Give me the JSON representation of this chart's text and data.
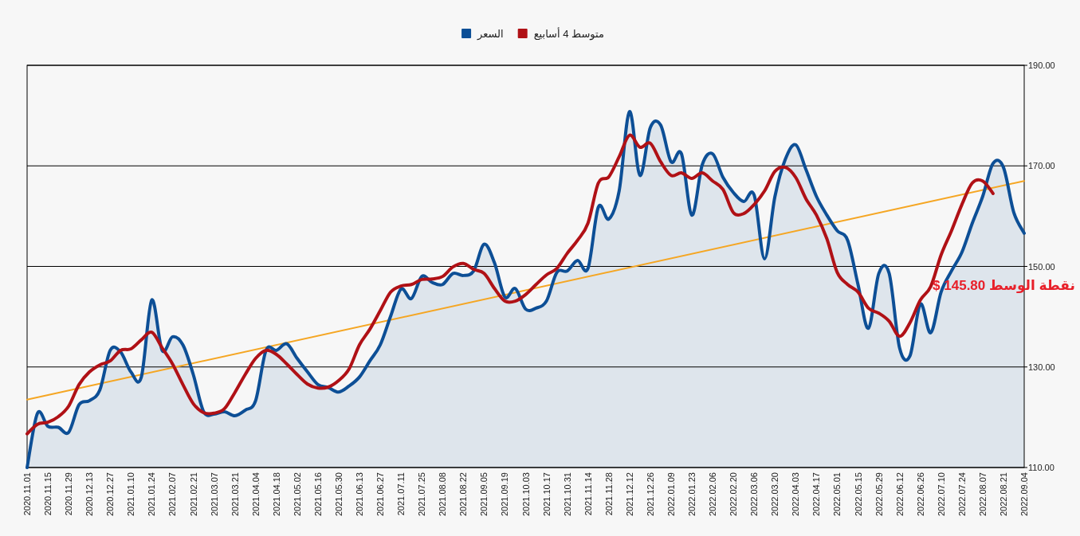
{
  "chart_data": {
    "type": "line",
    "x": [
      "2020-11-01",
      "2020-11-08",
      "2020-11-15",
      "2020-11-22",
      "2020-11-29",
      "2020-12-06",
      "2020-12-13",
      "2020-12-20",
      "2020-12-27",
      "2021-01-03",
      "2021-01-10",
      "2021-01-17",
      "2021-01-24",
      "2021-01-31",
      "2021-02-07",
      "2021-02-14",
      "2021-02-21",
      "2021-02-28",
      "2021-03-07",
      "2021-03-14",
      "2021-03-21",
      "2021-03-28",
      "2021-04-04",
      "2021-04-11",
      "2021-04-18",
      "2021-04-25",
      "2021-05-02",
      "2021-05-09",
      "2021-05-16",
      "2021-05-23",
      "2021-05-30",
      "2021-06-06",
      "2021-06-13",
      "2021-06-20",
      "2021-06-27",
      "2021-07-04",
      "2021-07-11",
      "2021-07-18",
      "2021-07-25",
      "2021-08-01",
      "2021-08-08",
      "2021-08-15",
      "2021-08-22",
      "2021-08-29",
      "2021-09-05",
      "2021-09-12",
      "2021-09-19",
      "2021-09-26",
      "2021-10-03",
      "2021-10-10",
      "2021-10-17",
      "2021-10-24",
      "2021-10-31",
      "2021-11-07",
      "2021-11-14",
      "2021-11-21",
      "2021-11-28",
      "2021-12-05",
      "2021-12-12",
      "2021-12-19",
      "2021-12-26",
      "2022-01-02",
      "2022-01-09",
      "2022-01-16",
      "2022-01-23",
      "2022-01-30",
      "2022-02-06",
      "2022-02-13",
      "2022-02-20",
      "2022-02-27",
      "2022-03-06",
      "2022-03-13",
      "2022-03-20",
      "2022-03-27",
      "2022-04-03",
      "2022-04-10",
      "2022-04-17",
      "2022-04-24",
      "2022-05-01",
      "2022-05-08",
      "2022-05-15",
      "2022-05-22",
      "2022-05-29",
      "2022-06-05",
      "2022-06-12",
      "2022-06-19",
      "2022-06-26",
      "2022-07-03",
      "2022-07-10",
      "2022-07-17",
      "2022-07-24",
      "2022-07-31",
      "2022-08-07",
      "2022-08-14",
      "2022-08-21",
      "2022-08-28",
      "2022-09-04"
    ],
    "series": [
      {
        "name": "السعر",
        "type": "area",
        "color": "#0d4f96",
        "values": [
          110,
          120.8,
          118.2,
          118,
          117,
          122.5,
          123.3,
          125.4,
          133.3,
          133,
          129,
          128,
          143.3,
          133.3,
          136,
          134.4,
          128.5,
          121.1,
          120.6,
          121.1,
          120.3,
          121.4,
          123.3,
          133.3,
          133.3,
          134.6,
          131.7,
          129,
          126.5,
          125.9,
          125,
          126.2,
          128,
          131.2,
          134.4,
          140.1,
          145.5,
          143.6,
          148,
          146.8,
          146.4,
          148.6,
          148.2,
          149.1,
          154.4,
          150.7,
          143.9,
          145.6,
          141.5,
          141.7,
          143.1,
          148.8,
          149.1,
          151.2,
          149.6,
          161.8,
          159.4,
          165,
          180.8,
          168.1,
          177.6,
          178.1,
          170.8,
          172.4,
          160.2,
          170.2,
          172.4,
          167.7,
          164.7,
          162.9,
          164.2,
          151.5,
          163.9,
          171.3,
          174.2,
          169.2,
          163.9,
          160.2,
          157.1,
          155.2,
          146.4,
          137.7,
          148.6,
          148.6,
          133.8,
          132.2,
          142.5,
          136.8,
          144.9,
          149.1,
          152.8,
          158.6,
          163.9,
          170.5,
          169.7,
          160.7,
          156.6
        ]
      },
      {
        "name": "متوسط 4 أسابيع",
        "type": "line",
        "color": "#b01116",
        "values": [
          116.7,
          118.6,
          119,
          120.1,
          122.2,
          126.5,
          129,
          130.4,
          131.2,
          133.3,
          133.6,
          135.4,
          136.9,
          133.8,
          130.6,
          126.5,
          122.7,
          120.9,
          120.8,
          121.7,
          124.9,
          128.5,
          131.7,
          133.3,
          132.5,
          130.6,
          128.5,
          126.6,
          125.8,
          126,
          127.3,
          129.6,
          134.4,
          137.5,
          141.2,
          144.9,
          146.1,
          146.4,
          147.4,
          147.5,
          148,
          149.9,
          150.6,
          149.4,
          148.6,
          145.6,
          143.1,
          143.1,
          144.4,
          146.4,
          148.3,
          149.6,
          152.6,
          155.2,
          158.6,
          166.6,
          167.8,
          171.8,
          176.1,
          173.7,
          174.5,
          170.8,
          168.1,
          168.6,
          167.5,
          168.6,
          167,
          165.3,
          160.7,
          160.5,
          162.3,
          165,
          168.9,
          169.7,
          167.7,
          163.4,
          160.2,
          155.5,
          148.8,
          146.4,
          144.9,
          141.7,
          140.7,
          139.1,
          136.1,
          138.8,
          143.3,
          146,
          152.3,
          157.1,
          162.3,
          166.6,
          167,
          164.5,
          null,
          null,
          null
        ]
      },
      {
        "color": "#f5a623",
        "x": [
          "2020-11-01",
          "2022-09-04"
        ],
        "values": [
          123.5,
          167
        ]
      }
    ],
    "annotations": [
      "نقطة الوسط 145.80 $"
    ],
    "legend": "top",
    "grid": "y",
    "xlim": [
      "2020-11-01",
      "2022-09-04"
    ],
    "xticks": [
      {
        "value": "2020-11-01",
        "label": "2020.11.01"
      },
      {
        "value": "2020-11-15",
        "label": "2020.11.15"
      },
      {
        "value": "2020-11-29",
        "label": "2020.11.29"
      },
      {
        "value": "2020-12-13",
        "label": "2020.12.13"
      },
      {
        "value": "2020-12-27",
        "label": "2020.12.27"
      },
      {
        "value": "2021-01-10",
        "label": "2021.01.10"
      },
      {
        "value": "2021-01-24",
        "label": "2021.01.24"
      },
      {
        "value": "2021-02-07",
        "label": "2021.02.07"
      },
      {
        "value": "2021-02-21",
        "label": "2021.02.21"
      },
      {
        "value": "2021-03-07",
        "label": "2021.03.07"
      },
      {
        "value": "2021-03-21",
        "label": "2021.03.21"
      },
      {
        "value": "2021-04-04",
        "label": "2021.04.04"
      },
      {
        "value": "2021-04-18",
        "label": "2021.04.18"
      },
      {
        "value": "2021-05-02",
        "label": "2021.05.02"
      },
      {
        "value": "2021-05-16",
        "label": "2021.05.16"
      },
      {
        "value": "2021-05-30",
        "label": "2021.05.30"
      },
      {
        "value": "2021-06-13",
        "label": "2021.06.13"
      },
      {
        "value": "2021-06-27",
        "label": "2021.06.27"
      },
      {
        "value": "2021-07-11",
        "label": "2021.07.11"
      },
      {
        "value": "2021-07-25",
        "label": "2021.07.25"
      },
      {
        "value": "2021-08-08",
        "label": "2021.08.08"
      },
      {
        "value": "2021-08-22",
        "label": "2021.08.22"
      },
      {
        "value": "2021-09-05",
        "label": "2021.09.05"
      },
      {
        "value": "2021-09-19",
        "label": "2021.09.19"
      },
      {
        "value": "2021-10-03",
        "label": "2021.10.03"
      },
      {
        "value": "2021-10-17",
        "label": "2021.10.17"
      },
      {
        "value": "2021-10-31",
        "label": "2021.10.31"
      },
      {
        "value": "2021-11-14",
        "label": "2021.11.14"
      },
      {
        "value": "2021-11-28",
        "label": "2021.11.28"
      },
      {
        "value": "2021-12-12",
        "label": "2021.12.12"
      },
      {
        "value": "2021-12-26",
        "label": "2021.12.26"
      },
      {
        "value": "2022-01-09",
        "label": "2022.01.09"
      },
      {
        "value": "2022-01-23",
        "label": "2022.01.23"
      },
      {
        "value": "2022-02-06",
        "label": "2022.02.06"
      },
      {
        "value": "2022-02-20",
        "label": "2022.02.20"
      },
      {
        "value": "2022-03-06",
        "label": "2022.03.06"
      },
      {
        "value": "2022-03-20",
        "label": "2022.03.20"
      },
      {
        "value": "2022-04-03",
        "label": "2022.04.03"
      },
      {
        "value": "2022-04-17",
        "label": "2022.04.17"
      },
      {
        "value": "2022-05-01",
        "label": "2022.05.01"
      },
      {
        "value": "2022-05-15",
        "label": "2022.05.15"
      },
      {
        "value": "2022-05-29",
        "label": "2022.05.29"
      },
      {
        "value": "2022-06-12",
        "label": "2022.06.12"
      },
      {
        "value": "2022-06-26",
        "label": "2022.06.26"
      },
      {
        "value": "2022-07-10",
        "label": "2022.07.10"
      },
      {
        "value": "2022-07-24",
        "label": "2022.07.24"
      },
      {
        "value": "2022-08-07",
        "label": "2022.08.07"
      },
      {
        "value": "2022-08-21",
        "label": "2022.08.21"
      },
      {
        "value": "2022-09-04",
        "label": "2022.09.04"
      }
    ],
    "ylim": [
      110,
      190
    ],
    "yticks": [
      {
        "value": 110,
        "label": "110.00"
      },
      {
        "value": 130,
        "label": "130.00"
      },
      {
        "value": 150,
        "label": "150.00"
      },
      {
        "value": 170,
        "label": "170.00"
      },
      {
        "value": 190,
        "label": "190.00"
      }
    ]
  }
}
